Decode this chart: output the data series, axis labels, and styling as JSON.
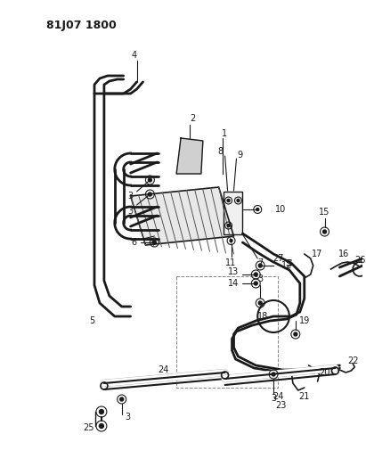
{
  "title": "81J07 1800",
  "bg": "#ffffff",
  "lc": "#1a1a1a",
  "fig_w": 4.11,
  "fig_h": 5.33,
  "dpi": 100
}
